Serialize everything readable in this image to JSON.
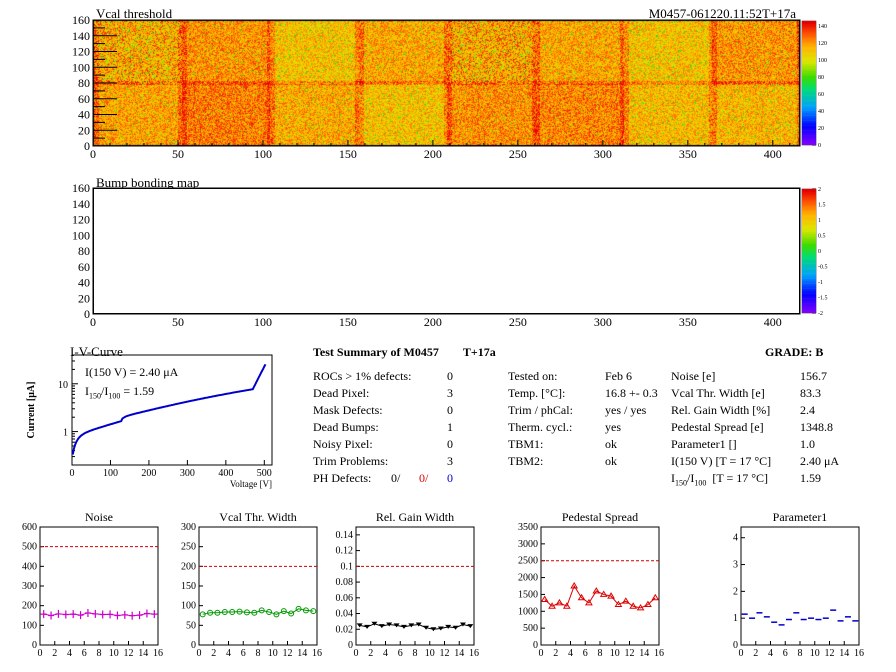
{
  "header": {
    "title_left": "Vcal threshold",
    "title_right": "M0457-061220.11:52T+17a",
    "bump_title": "Bump bonding map"
  },
  "maps": {
    "x_ticks": [
      "0",
      "50",
      "100",
      "150",
      "200",
      "250",
      "300",
      "350",
      "400"
    ],
    "y_ticks": [
      "0",
      "20",
      "40",
      "60",
      "80",
      "100",
      "120",
      "140",
      "160"
    ],
    "vcal_scale": [
      "0",
      "20",
      "40",
      "60",
      "80",
      "100",
      "120",
      "140"
    ],
    "bump_scale": [
      "-2",
      "-1.5",
      "-1",
      "-0.5",
      "0",
      "0.5",
      "1",
      "1.5",
      "2"
    ]
  },
  "iv": {
    "title": "I-V-Curve",
    "i150": "I(150 V) = 2.40 μA",
    "ratio_label": "I",
    "ratio_sub1": "150",
    "ratio_sep": "/I",
    "ratio_sub2": "100",
    "ratio_val": " =  1.59",
    "ylabel": "Current [μA]",
    "xlabel": "Voltage [V]",
    "x_ticks": [
      "0",
      "100",
      "200",
      "300",
      "400",
      "500"
    ],
    "y_ticks": [
      "1",
      "10"
    ]
  },
  "summary": {
    "title": "Test Summary of M0457",
    "tag": "T+17a",
    "grade": "GRADE:  B",
    "defects": [
      {
        "label": "ROCs > 1% defects:",
        "value": "0"
      },
      {
        "label": "Dead Pixel:",
        "value": "3"
      },
      {
        "label": "Mask Defects:",
        "value": "0"
      },
      {
        "label": "Dead Bumps:",
        "value": "1"
      },
      {
        "label": "Noisy Pixel:",
        "value": "0"
      },
      {
        "label": "Trim Problems:",
        "value": "3"
      }
    ],
    "ph_label": "PH Defects:",
    "ph_values": [
      "0/",
      "0/",
      "0"
    ],
    "ph_colors": [
      "#000000",
      "#dd0000",
      "#0000cc"
    ],
    "tests": [
      {
        "label": "Tested on:",
        "value": "Feb 6"
      },
      {
        "label": "Temp. [°C]:",
        "value": "16.8 +- 0.3"
      },
      {
        "label": "Trim / phCal:",
        "value": "yes / yes"
      },
      {
        "label": "Therm. cycl.:",
        "value": "yes"
      },
      {
        "label": "TBM1:",
        "value": "ok"
      },
      {
        "label": "TBM2:",
        "value": "ok"
      }
    ],
    "params": [
      {
        "label": "Noise [e]",
        "value": "156.7"
      },
      {
        "label": "Vcal Thr. Width [e]",
        "value": "83.3"
      },
      {
        "label": "Rel. Gain Width [%]",
        "value": "2.4"
      },
      {
        "label": "Pedestal Spread [e]",
        "value": "1348.8"
      },
      {
        "label": "Parameter1 []",
        "value": "1.0"
      },
      {
        "label": "I(150 V) [T = 17 °C]",
        "value": "2.40 μA"
      }
    ],
    "ratio_param_value": "1.59",
    "ratio_param_temp": "[T = 17 °C]"
  },
  "chart_data": [
    {
      "type": "line",
      "title": "Noise",
      "color": "#cc00cc",
      "marker": "cross",
      "x": [
        0,
        1,
        2,
        3,
        4,
        5,
        6,
        7,
        8,
        9,
        10,
        11,
        12,
        13,
        14,
        15
      ],
      "values": [
        157,
        150,
        158,
        155,
        157,
        152,
        163,
        158,
        155,
        156,
        150,
        153,
        149,
        152,
        160,
        157
      ],
      "ylim": [
        0,
        600
      ],
      "yticks": [
        0,
        100,
        200,
        300,
        400,
        500,
        600
      ],
      "limit": 500,
      "xticks": [
        0,
        2,
        4,
        6,
        8,
        10,
        12,
        14,
        16
      ]
    },
    {
      "type": "line",
      "title": "Vcal Thr. Width",
      "color": "#009900",
      "marker": "circle",
      "x": [
        0,
        1,
        2,
        3,
        4,
        5,
        6,
        7,
        8,
        9,
        10,
        11,
        12,
        13,
        14,
        15
      ],
      "values": [
        78,
        82,
        82,
        84,
        84,
        85,
        83,
        82,
        88,
        84,
        78,
        86,
        80,
        92,
        88,
        86
      ],
      "ylim": [
        0,
        300
      ],
      "yticks": [
        0,
        50,
        100,
        150,
        200,
        250,
        300
      ],
      "limit": 200,
      "xticks": [
        0,
        2,
        4,
        6,
        8,
        10,
        12,
        14,
        16
      ]
    },
    {
      "type": "line",
      "title": "Rel. Gain Width",
      "color": "#000000",
      "marker": "tri-down",
      "x": [
        0,
        1,
        2,
        3,
        4,
        5,
        6,
        7,
        8,
        9,
        10,
        11,
        12,
        13,
        14,
        15
      ],
      "values": [
        0.025,
        0.023,
        0.027,
        0.024,
        0.026,
        0.025,
        0.023,
        0.025,
        0.026,
        0.022,
        0.02,
        0.021,
        0.023,
        0.022,
        0.026,
        0.024
      ],
      "ylim": [
        0,
        0.15
      ],
      "yticks": [
        0,
        0.02,
        0.04,
        0.06,
        0.08,
        0.1,
        0.12,
        0.14
      ],
      "limit": 0.1,
      "xticks": [
        0,
        2,
        4,
        6,
        8,
        10,
        12,
        14,
        16
      ]
    },
    {
      "type": "line",
      "title": "Pedestal Spread",
      "color": "#dd0000",
      "marker": "tri-up",
      "x": [
        0,
        1,
        2,
        3,
        4,
        5,
        6,
        7,
        8,
        9,
        10,
        11,
        12,
        13,
        14,
        15
      ],
      "values": [
        1350,
        1150,
        1250,
        1150,
        1750,
        1400,
        1250,
        1600,
        1500,
        1450,
        1200,
        1300,
        1150,
        1100,
        1200,
        1400
      ],
      "ylim": [
        0,
        3500
      ],
      "yticks": [
        0,
        500,
        1000,
        1500,
        2000,
        2500,
        3000,
        3500
      ],
      "limit": 2500,
      "xticks": [
        0,
        2,
        4,
        6,
        8,
        10,
        12,
        14,
        16
      ]
    },
    {
      "type": "scatter",
      "title": "Parameter1",
      "color": "#0000cc",
      "marker": "dash",
      "x": [
        0,
        1,
        2,
        3,
        4,
        5,
        6,
        7,
        8,
        9,
        10,
        11,
        12,
        13,
        14,
        15
      ],
      "values": [
        1.15,
        1.0,
        1.2,
        1.05,
        0.85,
        0.75,
        0.95,
        1.2,
        0.95,
        1.0,
        0.95,
        1.0,
        1.3,
        0.9,
        1.05,
        0.9
      ],
      "ylim": [
        0,
        4.4
      ],
      "yticks": [
        0,
        1,
        2,
        3,
        4
      ],
      "xticks": [
        0,
        2,
        4,
        6,
        8,
        10,
        12,
        14,
        16
      ]
    }
  ]
}
